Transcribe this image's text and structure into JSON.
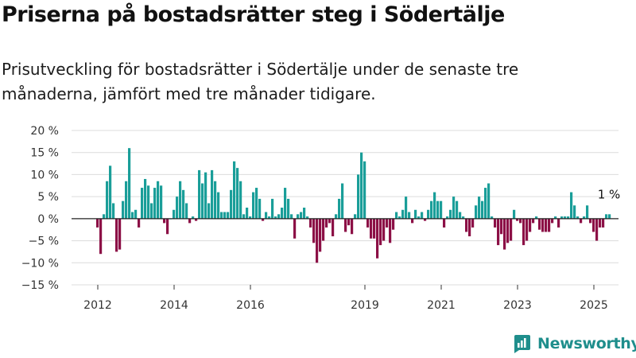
{
  "header": {
    "title": "Priserna på bostadsrätter steg i Södertälje",
    "subtitle": "Prisutveckling för bostadsrätter i Södertälje under de senaste tre månaderna, jämfört med tre månader tidigare."
  },
  "brand": {
    "name": "Newsworthy",
    "icon": "newsworthy-logo-icon",
    "color": "#1f8e8c"
  },
  "colors": {
    "positive": "#1a9e99",
    "negative": "#8c1046",
    "grid": "#dcdcdc",
    "zero_line": "#222222"
  },
  "chart_data": {
    "type": "bar",
    "title": "",
    "xlabel": "",
    "ylabel": "",
    "ylim": [
      -15,
      20
    ],
    "y_ticks": [
      -15,
      -10,
      -5,
      0,
      5,
      10,
      15,
      20
    ],
    "y_tick_labels": [
      "−15 %",
      "−10 %",
      "−5 %",
      "0 %",
      "5 %",
      "10 %",
      "15 %",
      "20 %"
    ],
    "x_ticks": [
      "2012",
      "2014",
      "2016",
      "2019",
      "2021",
      "2023",
      "2025"
    ],
    "x_tick_values": [
      "2012-01",
      "2014-01",
      "2016-01",
      "2019-01",
      "2021-01",
      "2023-01",
      "2025-01"
    ],
    "grid": true,
    "legend": "none",
    "series": [
      {
        "x_start": "2012-01",
        "x_step": "month",
        "values": [
          -2,
          -8,
          1,
          8.5,
          12,
          3.5,
          -7.5,
          -7,
          4,
          8.5,
          16,
          1.5,
          2,
          -2,
          7,
          9,
          7.5,
          3.5,
          7,
          8.5,
          7.5,
          -1,
          -3.5,
          0,
          2,
          5,
          8.5,
          6.5,
          3.5,
          -1,
          0.5,
          -0.5,
          11,
          8,
          10.5,
          3.5,
          11,
          8.5,
          6,
          1.5,
          1.5,
          1.5,
          6.5,
          13,
          11.5,
          8.5,
          1,
          2.5,
          0.5,
          6,
          7,
          4.5,
          -0.5,
          1.5,
          0.5,
          4.5,
          0.5,
          1,
          2.5,
          7,
          4.5,
          1,
          -4.5,
          1,
          1.5,
          2.5,
          0.5,
          -2,
          -5.5,
          -10,
          -7.5,
          -5,
          -2,
          -1,
          -4,
          1,
          4.5,
          8,
          -3,
          -1.5,
          -3.5,
          1,
          10,
          15,
          13,
          -2,
          -4.5,
          -4.5,
          -9,
          -6,
          -5,
          -2,
          -5.5,
          -2.5,
          1.5,
          0.5,
          2,
          5,
          1.5,
          -1,
          2,
          0.5,
          1.5,
          -0.5,
          2,
          4,
          6,
          4,
          4,
          -2,
          0.5,
          2,
          5,
          4,
          1.5,
          0.5,
          -3,
          -4,
          -2,
          3,
          5,
          4,
          7,
          8,
          0.5,
          -2,
          -6,
          -3.5,
          -7,
          -5.5,
          -5,
          2,
          -0.5,
          -1,
          -6,
          -5,
          -3,
          -1,
          0.5,
          -2.5,
          -3,
          -3,
          -3,
          -1,
          0.5,
          -2,
          0.5,
          0.5,
          0.5,
          6,
          3,
          0.5,
          -1,
          0.5,
          3,
          -1,
          -3,
          -5,
          -2,
          -2,
          1,
          1
        ],
        "last_label": "1 %"
      }
    ]
  }
}
